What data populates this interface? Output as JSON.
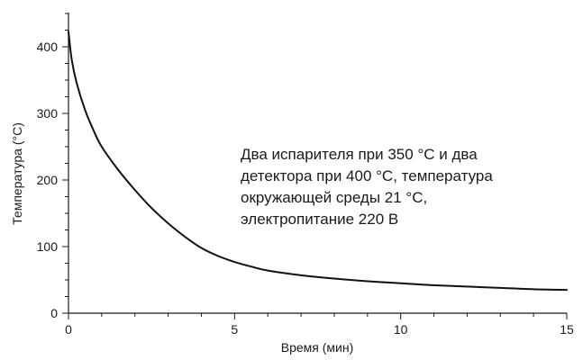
{
  "chart_data": {
    "type": "line",
    "xlabel": "Время (мин)",
    "ylabel": "Температура (°С)",
    "xlim": [
      0,
      15
    ],
    "ylim": [
      0,
      450
    ],
    "x_ticks": [
      0,
      5,
      10,
      15
    ],
    "y_ticks": [
      0,
      100,
      200,
      300,
      400
    ],
    "grid": false,
    "annotation": [
      "Два испарителя при 350 °С и два",
      "детектора при 400 °С, температура",
      "окружающей среды 21 °С,",
      "электропитание 220 В"
    ],
    "series": [
      {
        "x": [
          0,
          0.1,
          0.25,
          0.5,
          0.75,
          1,
          1.5,
          2,
          2.5,
          3,
          3.5,
          4,
          4.5,
          5,
          5.5,
          6,
          7,
          8,
          9,
          10,
          11,
          12,
          13,
          14,
          15
        ],
        "y": [
          423,
          380,
          345,
          305,
          275,
          250,
          215,
          185,
          158,
          135,
          115,
          98,
          86,
          77,
          70,
          64,
          57,
          52,
          48,
          45,
          42,
          40,
          38,
          36,
          35
        ],
        "color": "#111111"
      }
    ]
  }
}
